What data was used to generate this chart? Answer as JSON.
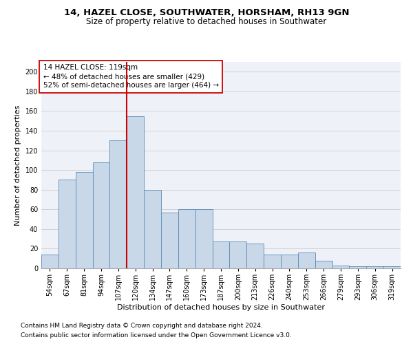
{
  "title_line1": "14, HAZEL CLOSE, SOUTHWATER, HORSHAM, RH13 9GN",
  "title_line2": "Size of property relative to detached houses in Southwater",
  "xlabel": "Distribution of detached houses by size in Southwater",
  "ylabel": "Number of detached properties",
  "categories": [
    "54sqm",
    "67sqm",
    "81sqm",
    "94sqm",
    "107sqm",
    "120sqm",
    "134sqm",
    "147sqm",
    "160sqm",
    "173sqm",
    "187sqm",
    "200sqm",
    "213sqm",
    "226sqm",
    "240sqm",
    "253sqm",
    "266sqm",
    "279sqm",
    "293sqm",
    "306sqm",
    "319sqm"
  ],
  "values": [
    14,
    90,
    98,
    108,
    130,
    155,
    80,
    57,
    60,
    60,
    27,
    27,
    25,
    14,
    14,
    16,
    8,
    3,
    2,
    2,
    2
  ],
  "bar_color": "#c8d8e8",
  "bar_edge_color": "#5a8ab5",
  "vline_color": "#cc0000",
  "annotation_text": "14 HAZEL CLOSE: 119sqm\n← 48% of detached houses are smaller (429)\n52% of semi-detached houses are larger (464) →",
  "annotation_box_color": "#ffffff",
  "annotation_box_edge": "#cc0000",
  "ylim": [
    0,
    210
  ],
  "yticks": [
    0,
    20,
    40,
    60,
    80,
    100,
    120,
    140,
    160,
    180,
    200
  ],
  "footnote1": "Contains HM Land Registry data © Crown copyright and database right 2024.",
  "footnote2": "Contains public sector information licensed under the Open Government Licence v3.0.",
  "bg_color": "#eef2f8",
  "grid_color": "#cccccc",
  "title_fontsize": 9.5,
  "subtitle_fontsize": 8.5,
  "axis_label_fontsize": 8,
  "tick_fontsize": 7,
  "annotation_fontsize": 7.5,
  "footnote_fontsize": 6.5
}
